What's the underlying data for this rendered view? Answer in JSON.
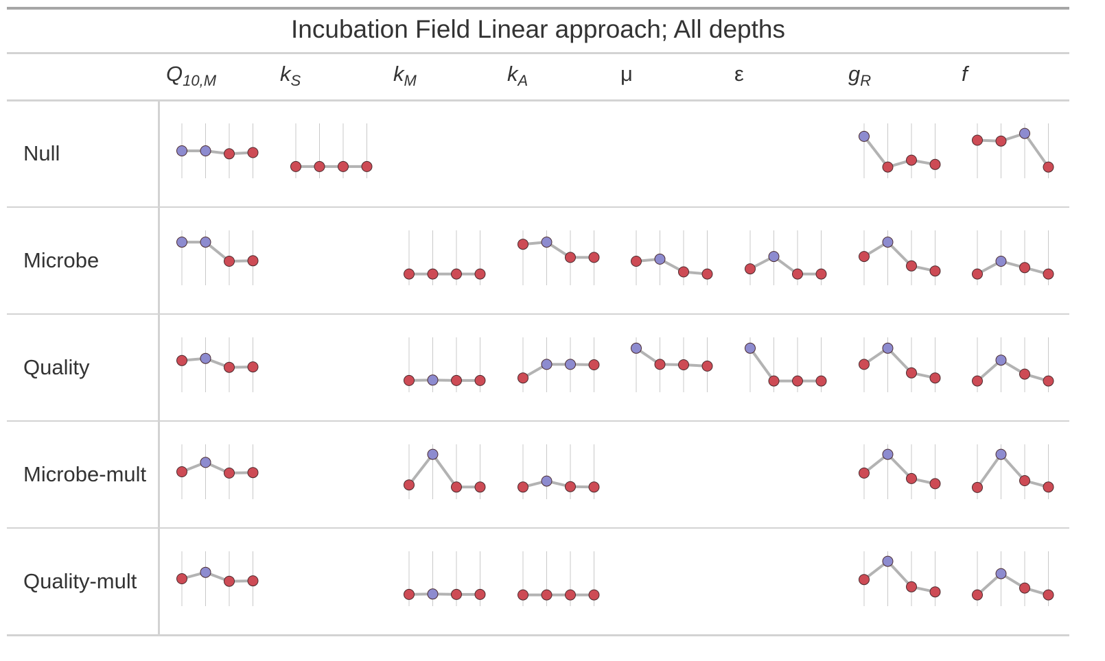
{
  "title": "Incubation Field Linear approach; All depths",
  "columns": [
    {
      "base": "Q",
      "sub": "10,M",
      "italic": true
    },
    {
      "base": "k",
      "sub": "S",
      "italic": true
    },
    {
      "base": "k",
      "sub": "M",
      "italic": true
    },
    {
      "base": "k",
      "sub": "A",
      "italic": true
    },
    {
      "base": "μ",
      "sub": "",
      "italic": false
    },
    {
      "base": "ε",
      "sub": "",
      "italic": false
    },
    {
      "base": "g",
      "sub": "R",
      "italic": true
    },
    {
      "base": "f",
      "sub": "",
      "italic": true
    }
  ],
  "rows": [
    "Null",
    "Microbe",
    "Quality",
    "Microbe-mult",
    "Quality-mult"
  ],
  "colors": {
    "line": "#b3b3b3",
    "point_default": "#cd4b55",
    "point_highlight": "#8d8bcf",
    "guide": "#c8c8c8",
    "rule": "#d3d3d3",
    "heavy_rule": "#a6a6a6"
  },
  "chart_data": {
    "type": "sparkline-table",
    "title": "Incubation Field Linear approach; All depths",
    "points_per_sparkline": 4,
    "value_range": [
      0,
      1
    ],
    "highlight_rule": "maximum value within each sparkline shown in purple",
    "cells": [
      {
        "row": "Null",
        "column": "Q10,M",
        "values": [
          0.5,
          0.5,
          0.43,
          0.46
        ]
      },
      {
        "row": "Null",
        "column": "kS",
        "values": [
          0.13,
          0.13,
          0.13,
          0.13
        ]
      },
      {
        "row": "Null",
        "column": "gR",
        "values": [
          0.84,
          0.12,
          0.28,
          0.18
        ]
      },
      {
        "row": "Null",
        "column": "f",
        "values": [
          0.75,
          0.73,
          0.91,
          0.12
        ]
      },
      {
        "row": "Microbe",
        "column": "Q10,M",
        "values": [
          0.87,
          0.87,
          0.42,
          0.43
        ]
      },
      {
        "row": "Microbe",
        "column": "kM",
        "values": [
          0.12,
          0.12,
          0.12,
          0.12
        ]
      },
      {
        "row": "Microbe",
        "column": "kA",
        "values": [
          0.82,
          0.87,
          0.51,
          0.51
        ]
      },
      {
        "row": "Microbe",
        "column": "μ",
        "values": [
          0.42,
          0.47,
          0.17,
          0.12
        ]
      },
      {
        "row": "Microbe",
        "column": "ε",
        "values": [
          0.24,
          0.53,
          0.12,
          0.12
        ]
      },
      {
        "row": "Microbe",
        "column": "gR",
        "values": [
          0.53,
          0.87,
          0.31,
          0.19
        ]
      },
      {
        "row": "Microbe",
        "column": "f",
        "values": [
          0.12,
          0.42,
          0.27,
          0.12
        ]
      },
      {
        "row": "Quality",
        "column": "Q10,M",
        "values": [
          0.6,
          0.65,
          0.44,
          0.45
        ]
      },
      {
        "row": "Quality",
        "column": "kM",
        "values": [
          0.13,
          0.14,
          0.13,
          0.13
        ]
      },
      {
        "row": "Quality",
        "column": "kA",
        "values": [
          0.19,
          0.51,
          0.51,
          0.5
        ]
      },
      {
        "row": "Quality",
        "column": "μ",
        "values": [
          0.89,
          0.51,
          0.5,
          0.47
        ]
      },
      {
        "row": "Quality",
        "column": "ε",
        "values": [
          0.89,
          0.12,
          0.12,
          0.12
        ]
      },
      {
        "row": "Quality",
        "column": "gR",
        "values": [
          0.51,
          0.89,
          0.31,
          0.19
        ]
      },
      {
        "row": "Quality",
        "column": "f",
        "values": [
          0.12,
          0.61,
          0.28,
          0.12
        ]
      },
      {
        "row": "Microbe-mult",
        "column": "Q10,M",
        "values": [
          0.5,
          0.72,
          0.47,
          0.48
        ]
      },
      {
        "row": "Microbe-mult",
        "column": "kM",
        "values": [
          0.19,
          0.91,
          0.14,
          0.14
        ]
      },
      {
        "row": "Microbe-mult",
        "column": "kA",
        "values": [
          0.14,
          0.28,
          0.15,
          0.14
        ]
      },
      {
        "row": "Microbe-mult",
        "column": "gR",
        "values": [
          0.47,
          0.91,
          0.34,
          0.22
        ]
      },
      {
        "row": "Microbe-mult",
        "column": "f",
        "values": [
          0.13,
          0.91,
          0.29,
          0.14
        ]
      },
      {
        "row": "Quality-mult",
        "column": "Q10,M",
        "values": [
          0.5,
          0.65,
          0.44,
          0.45
        ]
      },
      {
        "row": "Quality-mult",
        "column": "kM",
        "values": [
          0.13,
          0.14,
          0.13,
          0.13
        ]
      },
      {
        "row": "Quality-mult",
        "column": "kA",
        "values": [
          0.12,
          0.12,
          0.12,
          0.12
        ]
      },
      {
        "row": "Quality-mult",
        "column": "gR",
        "values": [
          0.48,
          0.91,
          0.31,
          0.19
        ]
      },
      {
        "row": "Quality-mult",
        "column": "f",
        "values": [
          0.12,
          0.62,
          0.28,
          0.12
        ]
      }
    ]
  }
}
